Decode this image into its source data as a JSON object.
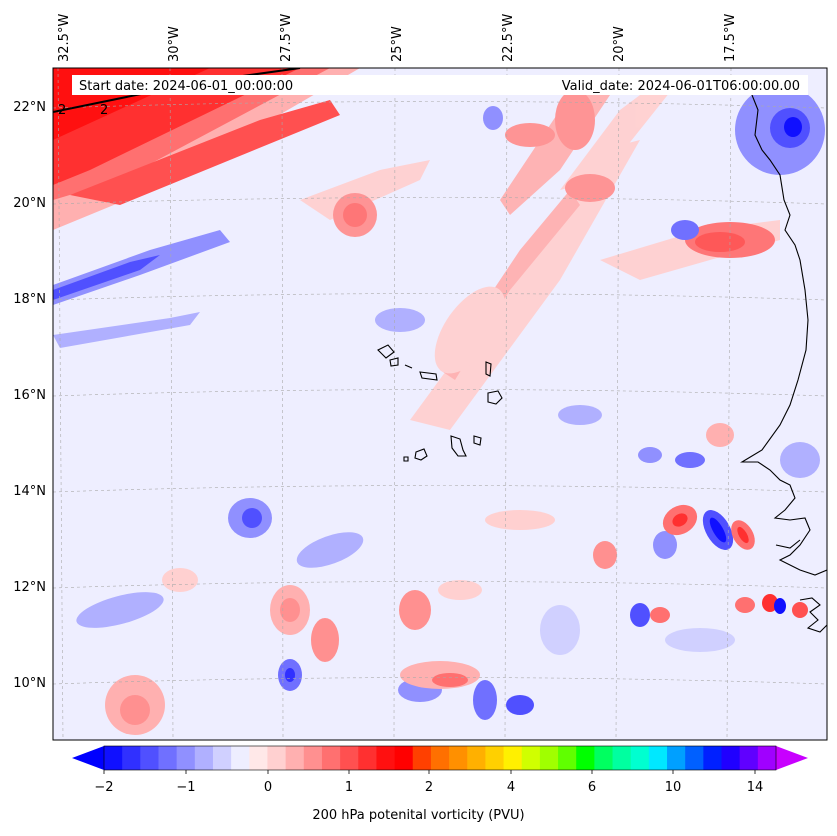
{
  "map": {
    "start_date": "Start date: 2024-06-01_00:00:00",
    "valid_date": "Valid_date: 2024-06-01T06:00:00.00",
    "lon_labels": [
      "32.5°W",
      "30°W",
      "27.5°W",
      "25°W",
      "22.5°W",
      "20°W",
      "17.5°W"
    ],
    "lat_labels": [
      "22°N",
      "20°N",
      "18°N",
      "16°N",
      "14°N",
      "12°N",
      "10°N"
    ],
    "contour_labels": [
      "2",
      "2"
    ]
  },
  "colorbar": {
    "label": "200 hPa potenital vorticity (PVU)",
    "tick_labels": [
      "−2",
      "−1",
      "0",
      "1",
      "2",
      "4",
      "6",
      "10",
      "14"
    ],
    "colors": [
      "#1010ff",
      "#3030ff",
      "#5050ff",
      "#7070ff",
      "#9090ff",
      "#b0b0ff",
      "#d0d0ff",
      "#eeeeff",
      "#ffe8e8",
      "#ffd0d0",
      "#ffb0b0",
      "#ff9090",
      "#ff7070",
      "#ff5050",
      "#ff3030",
      "#ff1010",
      "#ff0000",
      "#ff4000",
      "#ff7000",
      "#ff9000",
      "#ffb000",
      "#ffd000",
      "#fff000",
      "#d0ff00",
      "#a0ff00",
      "#60ff00",
      "#00ff00",
      "#00ff60",
      "#00ffa0",
      "#00ffd0",
      "#00e8ff",
      "#00a0ff",
      "#0060ff",
      "#0020ff",
      "#2000ff",
      "#6000ff",
      "#a000ff"
    ],
    "extend_low_color": "#0000ff",
    "extend_high_color": "#c800ff"
  }
}
